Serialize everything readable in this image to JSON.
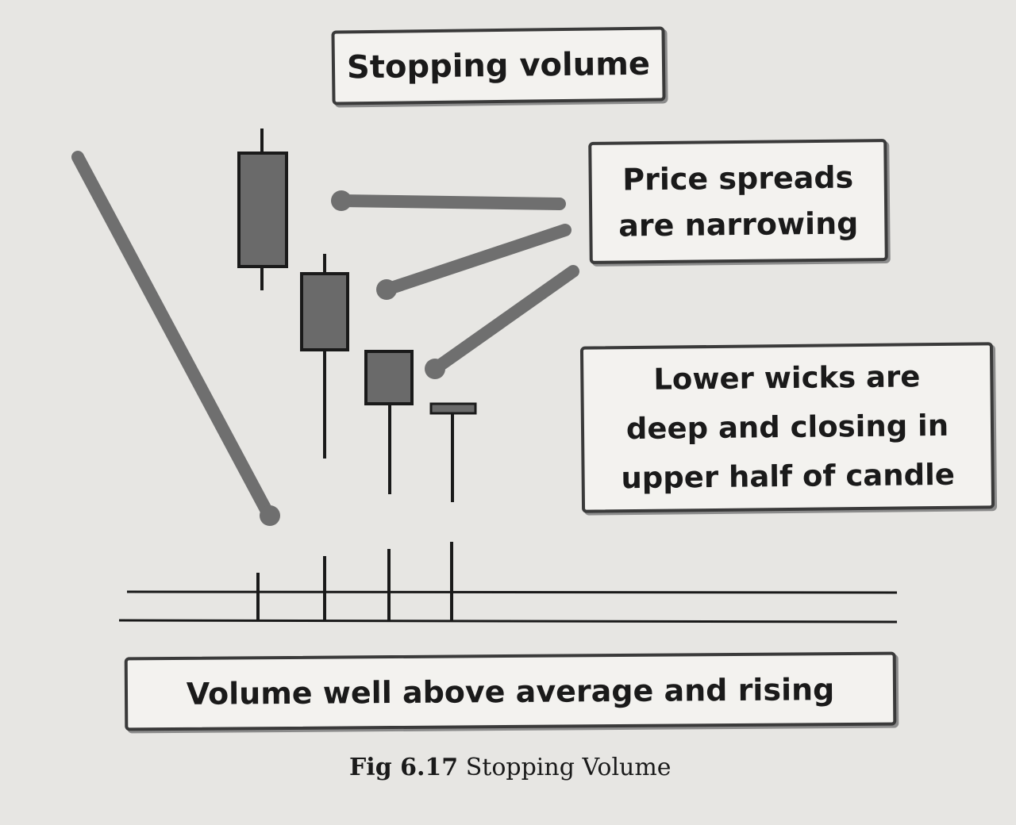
{
  "labels": {
    "stopping_volume": "Stopping volume",
    "price_spreads_line1": "Price spreads",
    "price_spreads_line2": "are narrowing",
    "lower_wicks_line1": "Lower wicks are",
    "lower_wicks_line2": "deep and closing in",
    "lower_wicks_line3": "upper half of candle",
    "volume": "Volume well above average and rising"
  },
  "caption": {
    "number": "Fig 6.17",
    "title": "Stopping Volume"
  },
  "colors": {
    "candle_fill": "#6a6a6a",
    "arrow": "#6f6f6f",
    "ink": "#1a1a1a"
  }
}
